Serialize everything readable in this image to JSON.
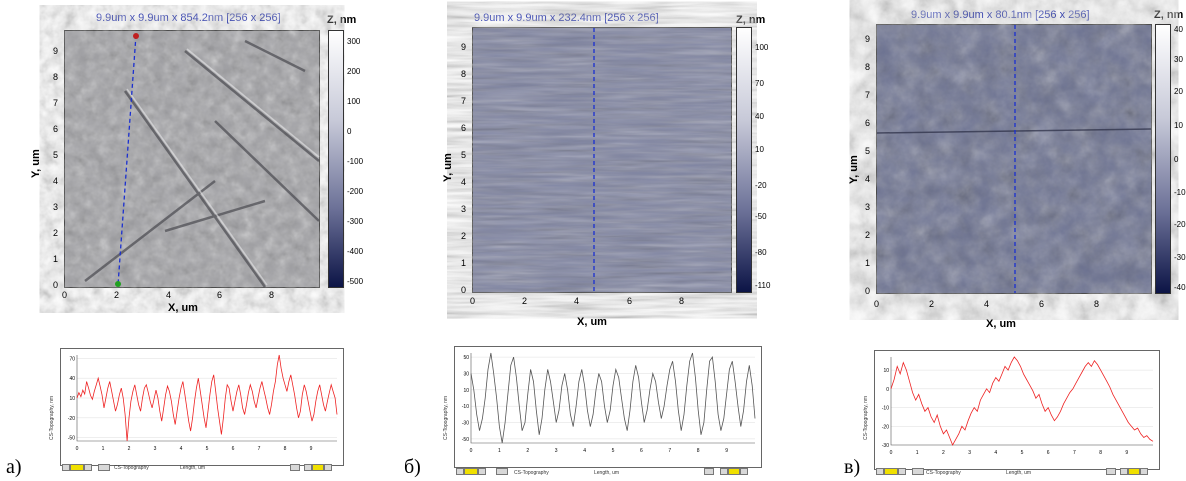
{
  "panels": [
    {
      "label": "а)",
      "scan_title": "9.9um x 9.9um x 854.2nm [256 x 256]",
      "z_unit": "Z, nm",
      "x_axis_label": "X, um",
      "y_axis_label": "Y, um",
      "x_ticks": [
        "0",
        "2",
        "4",
        "6",
        "8"
      ],
      "y_ticks": [
        "0",
        "1",
        "2",
        "3",
        "4",
        "5",
        "6",
        "7",
        "8",
        "9"
      ],
      "colorbar_ticks": [
        "300",
        "200",
        "100",
        "0",
        "-100",
        "-200",
        "-300",
        "-400",
        "-500"
      ],
      "profile_x_ticks": [
        "0",
        "1",
        "2",
        "3",
        "4",
        "5",
        "6",
        "7",
        "8",
        "9"
      ],
      "profile_y_ticks": [
        "70",
        "40",
        "10",
        "-20",
        "-50"
      ],
      "profile_line_color": "#ee2222",
      "profile_values": [
        10,
        18,
        12,
        22,
        16,
        35,
        25,
        14,
        8,
        20,
        30,
        40,
        28,
        15,
        -5,
        10,
        25,
        35,
        20,
        5,
        -10,
        0,
        15,
        25,
        10,
        -15,
        -55,
        -20,
        5,
        20,
        30,
        15,
        0,
        -10,
        10,
        25,
        30,
        18,
        5,
        -5,
        8,
        22,
        10,
        -10,
        -25,
        -5,
        15,
        28,
        20,
        5,
        -15,
        -30,
        -10,
        10,
        25,
        35,
        15,
        -5,
        -25,
        -40,
        -20,
        5,
        25,
        40,
        20,
        0,
        -20,
        -35,
        -10,
        15,
        35,
        45,
        20,
        -5,
        -25,
        -45,
        -20,
        10,
        30,
        25,
        5,
        -10,
        5,
        20,
        30,
        15,
        -5,
        -15,
        0,
        18,
        30,
        20,
        5,
        -5,
        10,
        25,
        35,
        22,
        10,
        -5,
        -15,
        0,
        20,
        35,
        60,
        75,
        55,
        40,
        30,
        20,
        35,
        45,
        30,
        15,
        -5,
        -20,
        -10,
        15,
        30,
        20,
        5,
        -10,
        -25,
        -15,
        5,
        20,
        30,
        15,
        0,
        -10,
        5,
        18,
        30,
        20,
        10,
        -15
      ]
    },
    {
      "label": "б)",
      "scan_title": "9.9um x 9.9um x 232.4nm [256 x 256]",
      "z_unit": "Z, nm",
      "x_axis_label": "X, um",
      "y_axis_label": "Y, um",
      "x_ticks": [
        "0",
        "2",
        "4",
        "6",
        "8"
      ],
      "y_ticks": [
        "0",
        "1",
        "2",
        "3",
        "4",
        "5",
        "6",
        "7",
        "8",
        "9"
      ],
      "colorbar_ticks": [
        "100",
        "70",
        "40",
        "10",
        "-20",
        "-50",
        "-80",
        "-110"
      ],
      "profile_x_ticks": [
        "0",
        "1",
        "2",
        "3",
        "4",
        "5",
        "6",
        "7",
        "8",
        "9"
      ],
      "profile_y_ticks": [
        "50",
        "30",
        "10",
        "-10",
        "-30",
        "-50"
      ],
      "profile_line_color": "#555555",
      "profile_values": [
        30,
        10,
        -20,
        -40,
        -25,
        0,
        35,
        55,
        30,
        0,
        -35,
        -55,
        -30,
        5,
        40,
        50,
        25,
        -10,
        -40,
        -30,
        5,
        35,
        20,
        -15,
        -45,
        -25,
        10,
        35,
        20,
        -5,
        -30,
        -15,
        15,
        30,
        10,
        -20,
        -35,
        -10,
        20,
        35,
        15,
        -15,
        -35,
        -20,
        10,
        30,
        20,
        -10,
        -30,
        -15,
        15,
        35,
        25,
        0,
        -25,
        -40,
        -15,
        20,
        40,
        25,
        -5,
        -30,
        -15,
        10,
        30,
        20,
        -5,
        -25,
        -10,
        15,
        35,
        45,
        20,
        -15,
        -40,
        -20,
        15,
        45,
        55,
        25,
        -15,
        -45,
        -30,
        10,
        45,
        50,
        20,
        -20,
        -40,
        -25,
        5,
        35,
        45,
        20,
        -10,
        -35,
        -15,
        20,
        40,
        15,
        -25
      ]
    },
    {
      "label": "в)",
      "scan_title": "9.9um x 9.9um x 80.1nm [256 x 256]",
      "z_unit": "Z, nm",
      "x_axis_label": "X, um",
      "y_axis_label": "Y, um",
      "x_ticks": [
        "0",
        "2",
        "4",
        "6",
        "8"
      ],
      "y_ticks": [
        "0",
        "1",
        "2",
        "3",
        "4",
        "5",
        "6",
        "7",
        "8",
        "9"
      ],
      "colorbar_ticks": [
        "40",
        "30",
        "20",
        "10",
        "0",
        "-10",
        "-20",
        "-30",
        "-40"
      ],
      "profile_x_ticks": [
        "0",
        "1",
        "2",
        "3",
        "4",
        "5",
        "6",
        "7",
        "8",
        "9"
      ],
      "profile_y_ticks": [
        "10",
        "0",
        "-10",
        "-20",
        "-30"
      ],
      "profile_line_color": "#ee2222",
      "profile_values": [
        0,
        5,
        12,
        8,
        14,
        10,
        4,
        -2,
        -6,
        -3,
        -8,
        -12,
        -10,
        -15,
        -18,
        -14,
        -20,
        -24,
        -22,
        -26,
        -30,
        -27,
        -24,
        -20,
        -22,
        -17,
        -13,
        -10,
        -12,
        -6,
        -3,
        0,
        -2,
        3,
        6,
        4,
        8,
        12,
        10,
        14,
        17,
        15,
        12,
        8,
        5,
        2,
        -1,
        -5,
        -3,
        -8,
        -12,
        -10,
        -14,
        -17,
        -15,
        -12,
        -8,
        -5,
        -2,
        0,
        3,
        6,
        9,
        12,
        14,
        12,
        15,
        13,
        10,
        7,
        4,
        1,
        -3,
        -6,
        -9,
        -12,
        -15,
        -18,
        -20,
        -22,
        -21,
        -24,
        -26,
        -25,
        -27,
        -28
      ]
    }
  ],
  "profile_x_label": "Length, um",
  "profile_y_label": "CS-Topography, nm",
  "profile_legend": "CS-Topography"
}
